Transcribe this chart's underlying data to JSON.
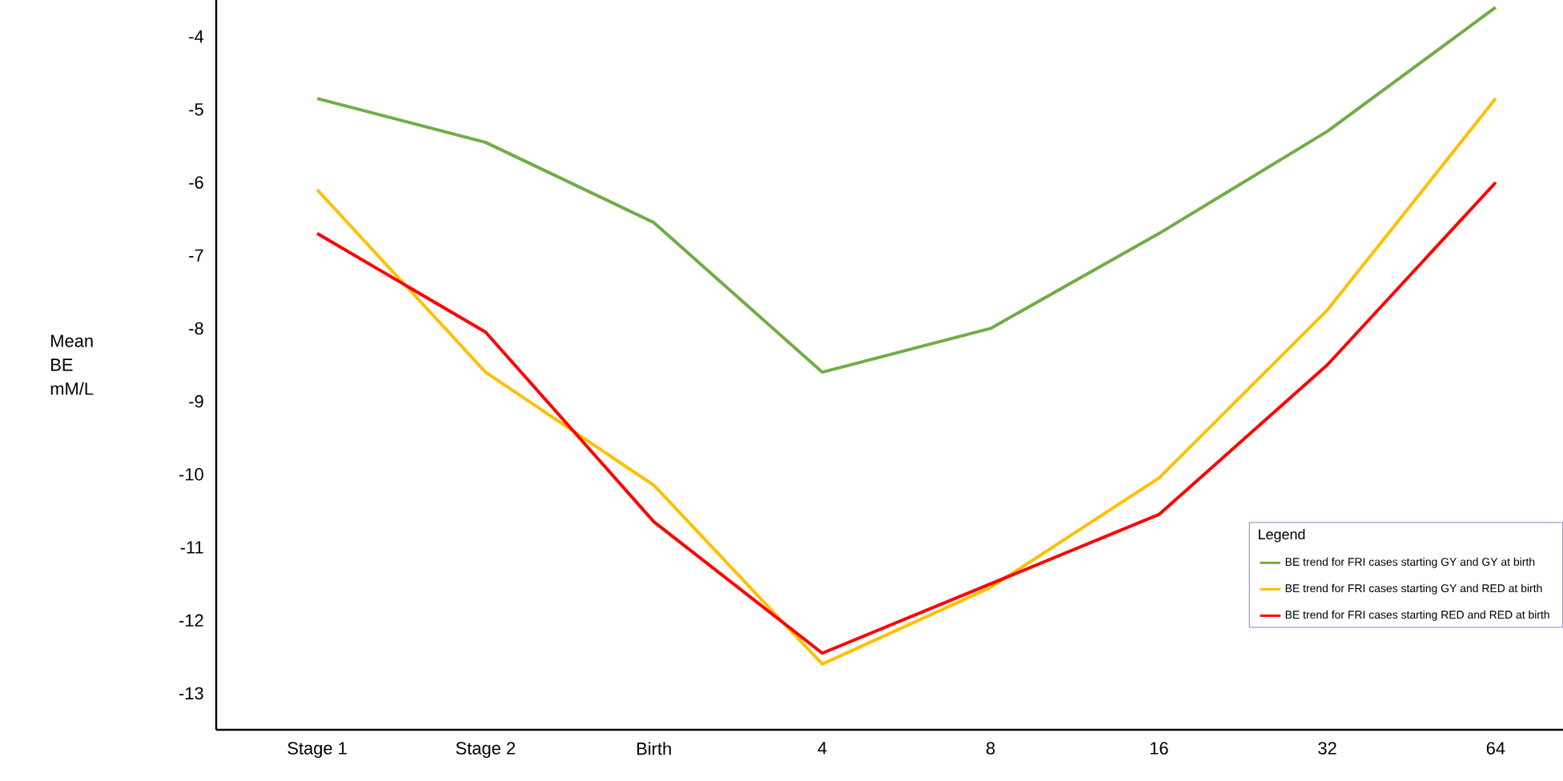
{
  "chart_data": {
    "type": "line",
    "ylabel": "Mean BE mM/L",
    "legend_title": "Legend",
    "categories": [
      "Stage 1",
      "Stage 2",
      "Birth",
      "4",
      "8",
      "16",
      "32",
      "64"
    ],
    "series": [
      {
        "name": "BE trend for FRI cases starting GY and GY at birth",
        "color": "#70ad47",
        "values": [
          -4.85,
          -5.45,
          -6.55,
          -8.6,
          -8.0,
          -6.7,
          -5.3,
          -3.6
        ]
      },
      {
        "name": "BE trend for FRI cases starting GY and RED  at birth",
        "color": "#ffc000",
        "values": [
          -6.1,
          -8.6,
          -10.15,
          -12.6,
          -11.55,
          -10.05,
          -7.75,
          -4.85
        ]
      },
      {
        "name": "BE trend for FRI cases starting RED and RED  at birth",
        "color": "#ff0000",
        "values": [
          -6.7,
          -8.05,
          -10.65,
          -12.45,
          null,
          -10.55,
          -8.5,
          -6.0
        ]
      }
    ],
    "ylim": [
      -13.5,
      -3.5
    ],
    "yticks": [
      -4,
      -5,
      -6,
      -7,
      -8,
      -9,
      -10,
      -11,
      -12,
      -13
    ],
    "grid": false,
    "legend": "bottom right",
    "marker": "none",
    "line_style": "solid"
  }
}
